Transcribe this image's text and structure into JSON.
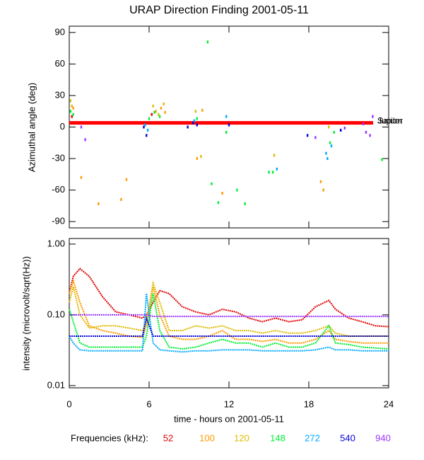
{
  "chart_data": [
    {
      "type": "scatter",
      "title": "URAP Direction Finding  2001-05-11",
      "ylabel": "Azimuthal angle (deg)",
      "xlim": [
        0,
        24
      ],
      "xticks": [
        0,
        6,
        12,
        18,
        24
      ],
      "ylim": [
        -96,
        96
      ],
      "yticks": [
        90,
        60,
        30,
        0,
        -30,
        -60,
        -90
      ],
      "annotations": [
        {
          "text": "Saturn",
          "value": 4,
          "color": "#ff0000"
        },
        {
          "text": "Jupiter",
          "value": 4,
          "color": "#ff0000"
        }
      ],
      "series": [
        {
          "color": "#e00000",
          "x": [
            0.2,
            6.2
          ],
          "values": [
            10,
            12
          ]
        },
        {
          "color": "#ff9900",
          "x": [
            0.3,
            0.9,
            2.2,
            3.9,
            4.3,
            6.5,
            6.9,
            7.2,
            9.6,
            10,
            11.5,
            18.9,
            19.1
          ],
          "values": [
            18,
            -48,
            -73,
            -69,
            -50,
            15,
            18,
            14,
            -30,
            16,
            -63,
            -52,
            -60
          ]
        },
        {
          "color": "#ddbb00",
          "x": [
            0.1,
            0.2,
            6.3,
            6.7,
            7.1,
            9.5,
            9.9,
            15.4,
            19.5
          ],
          "values": [
            25,
            20,
            20,
            12,
            22,
            15,
            -28,
            -27,
            0
          ]
        },
        {
          "color": "#00ee33",
          "x": [
            0.1,
            0.3,
            6.0,
            6.4,
            6.8,
            9.6,
            10.4,
            11.2,
            11.8,
            12.6,
            13.2,
            15.0,
            15.3,
            19.6,
            19.9,
            23.5,
            10.7
          ],
          "values": [
            15,
            12,
            8,
            14,
            10,
            8,
            81,
            -72,
            -5,
            -60,
            -73,
            -43,
            -43,
            -15,
            -5,
            -31,
            -54
          ]
        },
        {
          "color": "#00aaff",
          "x": [
            5.7,
            5.9,
            9.4,
            11.8,
            19.3,
            19.4,
            15.6,
            19.7
          ],
          "values": [
            2,
            -3,
            6,
            10,
            -25,
            -30,
            -40,
            -18
          ]
        },
        {
          "color": "#0000dd",
          "x": [
            5.6,
            5.8,
            8.9,
            9.3,
            9.6,
            17.9,
            20.4,
            12
          ],
          "values": [
            0,
            -8,
            0,
            4,
            2,
            -8,
            -3,
            2
          ]
        },
        {
          "color": "#9933ff",
          "x": [
            0.9,
            1.2,
            18.5,
            20.7,
            22.3,
            22.6,
            22.8,
            22.1
          ],
          "values": [
            0,
            -12,
            -10,
            -1,
            -5,
            -8,
            10,
            3
          ]
        }
      ]
    },
    {
      "type": "line",
      "xlabel": "time - hours on 2001-05-11",
      "ylabel": "intensity (microvolt/sqrt(Hz))",
      "log_scale": true,
      "legend_title": "Frequencies (kHz):",
      "xlim": [
        0,
        24
      ],
      "xticks": [
        0,
        6,
        12,
        18,
        24
      ],
      "ylim": [
        0.0093,
        1.2
      ],
      "yticks": [
        {
          "value": 1,
          "label": "1.00"
        },
        {
          "value": 0.1,
          "label": "0.10"
        },
        {
          "value": 0.01,
          "label": "0.01"
        }
      ],
      "x": [
        0,
        0.3,
        0.8,
        1.5,
        2.5,
        3.5,
        4.5,
        5.5,
        5.8,
        6.3,
        6.8,
        7.5,
        8.5,
        9.5,
        10.5,
        11.5,
        12.5,
        13.5,
        14.5,
        15.5,
        16.5,
        17.5,
        18.5,
        19.5,
        20,
        21,
        22,
        23,
        24
      ],
      "series": [
        {
          "name": "52",
          "color": "#e00000",
          "values": [
            0.2,
            0.35,
            0.45,
            0.35,
            0.18,
            0.11,
            0.1,
            0.09,
            0.1,
            0.15,
            0.22,
            0.2,
            0.13,
            0.11,
            0.1,
            0.12,
            0.11,
            0.09,
            0.08,
            0.09,
            0.08,
            0.085,
            0.13,
            0.16,
            0.12,
            0.09,
            0.08,
            0.07,
            0.068
          ]
        },
        {
          "name": "100",
          "color": "#ff9900",
          "values": [
            0.2,
            0.3,
            0.15,
            0.07,
            0.06,
            0.055,
            0.05,
            0.048,
            0.07,
            0.25,
            0.1,
            0.05,
            0.045,
            0.045,
            0.05,
            0.06,
            0.045,
            0.045,
            0.042,
            0.045,
            0.04,
            0.04,
            0.045,
            0.06,
            0.045,
            0.042,
            0.04,
            0.04,
            0.04
          ]
        },
        {
          "name": "120",
          "color": "#ddbb00",
          "values": [
            0.15,
            0.25,
            0.1,
            0.065,
            0.07,
            0.07,
            0.065,
            0.06,
            0.08,
            0.28,
            0.15,
            0.06,
            0.06,
            0.07,
            0.065,
            0.07,
            0.06,
            0.06,
            0.055,
            0.06,
            0.055,
            0.055,
            0.06,
            0.07,
            0.055,
            0.05,
            0.05,
            0.05,
            0.05
          ]
        },
        {
          "name": "148",
          "color": "#00ee33",
          "values": [
            0.12,
            0.08,
            0.04,
            0.035,
            0.035,
            0.035,
            0.035,
            0.035,
            0.05,
            0.2,
            0.06,
            0.035,
            0.033,
            0.035,
            0.04,
            0.045,
            0.04,
            0.04,
            0.035,
            0.04,
            0.035,
            0.035,
            0.04,
            0.07,
            0.04,
            0.038,
            0.035,
            0.034,
            0.033
          ]
        },
        {
          "name": "272",
          "color": "#00aaff",
          "values": [
            0.05,
            0.04,
            0.032,
            0.031,
            0.031,
            0.031,
            0.031,
            0.031,
            0.2,
            0.04,
            0.032,
            0.031,
            0.03,
            0.031,
            0.031,
            0.032,
            0.032,
            0.032,
            0.031,
            0.031,
            0.031,
            0.031,
            0.032,
            0.035,
            0.032,
            0.032,
            0.031,
            0.031,
            0.031
          ]
        },
        {
          "name": "540",
          "color": "#0000dd",
          "values": [
            0.05,
            0.05,
            0.05,
            0.05,
            0.05,
            0.05,
            0.05,
            0.05,
            0.09,
            0.05,
            0.05,
            0.05,
            0.05,
            0.05,
            0.05,
            0.05,
            0.05,
            0.05,
            0.05,
            0.05,
            0.05,
            0.05,
            0.05,
            0.05,
            0.05,
            0.05,
            0.05,
            0.05,
            0.05
          ]
        },
        {
          "name": "940",
          "color": "#9933ff",
          "values": [
            0.1,
            0.1,
            0.1,
            0.1,
            0.1,
            0.1,
            0.1,
            0.1,
            0.1,
            0.095,
            0.095,
            0.095,
            0.095,
            0.095,
            0.095,
            0.095,
            0.095,
            0.095,
            0.095,
            0.095,
            0.095,
            0.095,
            0.095,
            0.095,
            0.095,
            0.095,
            0.095,
            0.095,
            0.095
          ]
        }
      ]
    }
  ]
}
